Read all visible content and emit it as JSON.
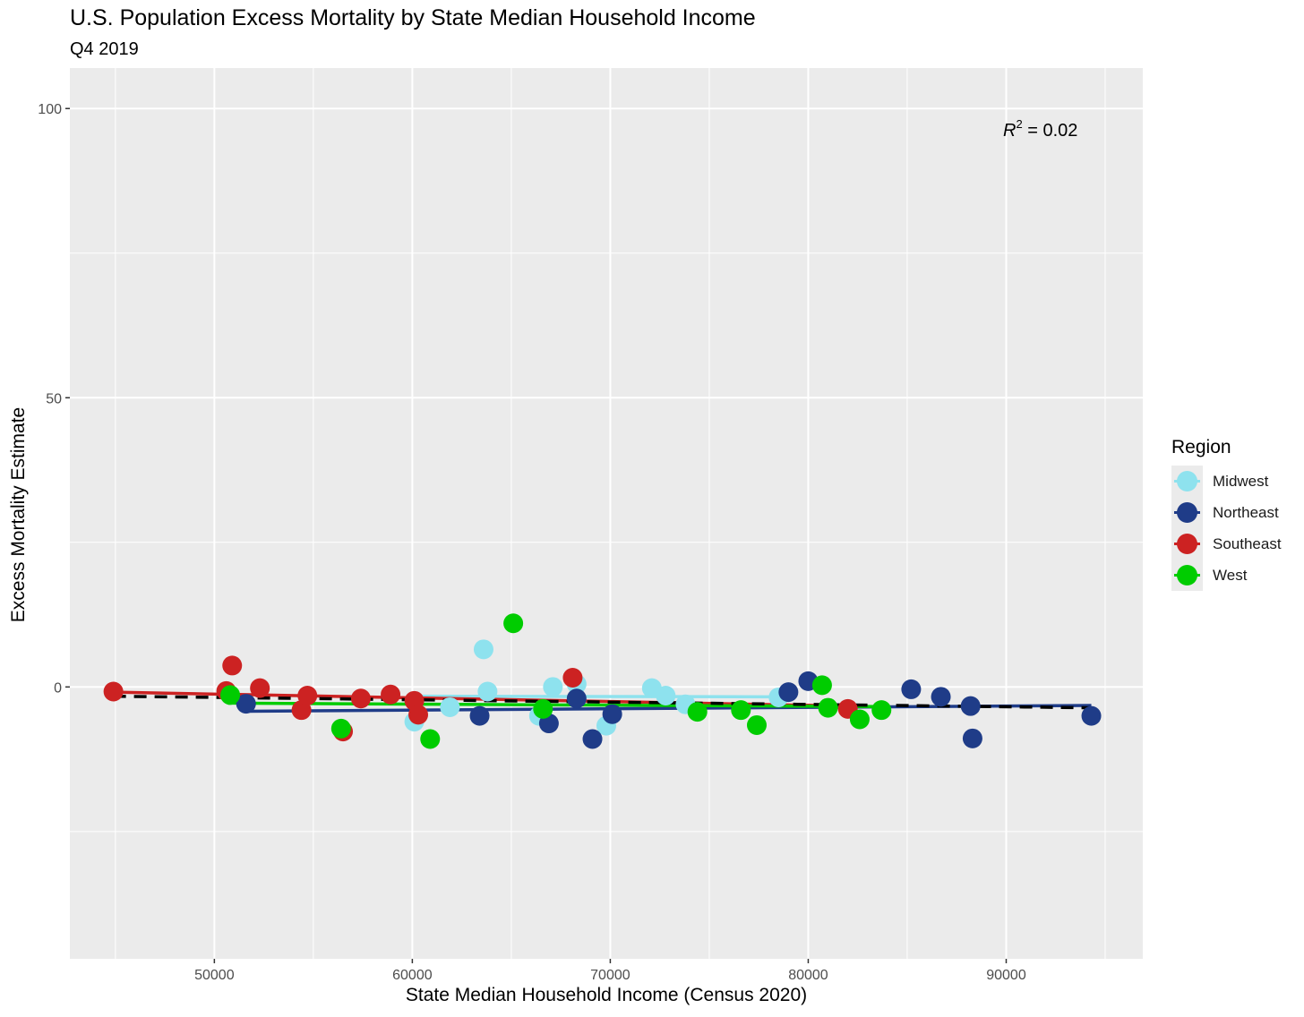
{
  "chart_data": {
    "type": "scatter",
    "title": "U.S. Population Excess Mortality by State Median Household Income",
    "subtitle": "Q4 2019",
    "xlabel": "State Median Household Income (Census 2020)",
    "ylabel": "Excess Mortality Estimate",
    "xlim": [
      42700,
      96900
    ],
    "ylim": [
      -47,
      107
    ],
    "x_ticks": [
      50000,
      60000,
      70000,
      80000,
      90000
    ],
    "y_ticks": [
      0,
      50,
      100
    ],
    "grid": true,
    "legend_title": "Region",
    "legend_position": "right",
    "annotation": {
      "label": "R",
      "superscript": "2",
      "value": "= 0.02"
    },
    "series": [
      {
        "name": "Midwest",
        "color": "#8ee2ee",
        "trend": {
          "x": [
            60100,
            78500
          ],
          "y": [
            -1.6,
            -1.7
          ]
        },
        "points": [
          {
            "x": 60100,
            "y": -6.0
          },
          {
            "x": 61900,
            "y": -3.5
          },
          {
            "x": 63600,
            "y": 6.5
          },
          {
            "x": 63800,
            "y": -0.8
          },
          {
            "x": 66400,
            "y": -5.0
          },
          {
            "x": 67100,
            "y": 0.0
          },
          {
            "x": 68300,
            "y": 0.5
          },
          {
            "x": 69800,
            "y": -6.7
          },
          {
            "x": 72100,
            "y": -0.2
          },
          {
            "x": 72800,
            "y": -1.5
          },
          {
            "x": 73800,
            "y": -3.0
          },
          {
            "x": 78500,
            "y": -1.8
          }
        ]
      },
      {
        "name": "Northeast",
        "color": "#1f3c88",
        "trend": {
          "x": [
            51600,
            94300
          ],
          "y": [
            -4.2,
            -3.2
          ]
        },
        "points": [
          {
            "x": 51600,
            "y": -2.9
          },
          {
            "x": 63400,
            "y": -5.0
          },
          {
            "x": 66900,
            "y": -6.3
          },
          {
            "x": 68300,
            "y": -2.0
          },
          {
            "x": 69100,
            "y": -9.0
          },
          {
            "x": 70100,
            "y": -4.7
          },
          {
            "x": 79000,
            "y": -0.9
          },
          {
            "x": 80000,
            "y": 1.0
          },
          {
            "x": 85200,
            "y": -0.4
          },
          {
            "x": 86700,
            "y": -1.7
          },
          {
            "x": 88200,
            "y": -3.3
          },
          {
            "x": 88300,
            "y": -8.9
          },
          {
            "x": 94300,
            "y": -5.0
          }
        ]
      },
      {
        "name": "Southeast",
        "color": "#cc2222",
        "trend": {
          "x": [
            44900,
            82000
          ],
          "y": [
            -0.9,
            -3.3
          ]
        },
        "points": [
          {
            "x": 44900,
            "y": -0.8
          },
          {
            "x": 50600,
            "y": -0.7
          },
          {
            "x": 50900,
            "y": 3.7
          },
          {
            "x": 52300,
            "y": -0.2
          },
          {
            "x": 54400,
            "y": -4.0
          },
          {
            "x": 54700,
            "y": -1.5
          },
          {
            "x": 56500,
            "y": -7.7
          },
          {
            "x": 57400,
            "y": -2.0
          },
          {
            "x": 58900,
            "y": -1.3
          },
          {
            "x": 60100,
            "y": -2.4
          },
          {
            "x": 60300,
            "y": -4.8
          },
          {
            "x": 68100,
            "y": 1.6
          },
          {
            "x": 82000,
            "y": -3.8
          }
        ]
      },
      {
        "name": "West",
        "color": "#00cc00",
        "trend": {
          "x": [
            50800,
            83700
          ],
          "y": [
            -2.8,
            -3.4
          ]
        },
        "points": [
          {
            "x": 50800,
            "y": -1.4
          },
          {
            "x": 56400,
            "y": -7.2
          },
          {
            "x": 60900,
            "y": -9.0
          },
          {
            "x": 65100,
            "y": 11.0
          },
          {
            "x": 66600,
            "y": -3.8
          },
          {
            "x": 74400,
            "y": -4.3
          },
          {
            "x": 76600,
            "y": -4.0
          },
          {
            "x": 77400,
            "y": -6.6
          },
          {
            "x": 80700,
            "y": 0.3
          },
          {
            "x": 81000,
            "y": -3.6
          },
          {
            "x": 82600,
            "y": -5.6
          },
          {
            "x": 83700,
            "y": -4.0
          }
        ]
      }
    ],
    "overall_trend": {
      "x": [
        44900,
        94300
      ],
      "y": [
        -1.6,
        -3.6
      ],
      "style": "dashed",
      "color": "#000000"
    }
  }
}
